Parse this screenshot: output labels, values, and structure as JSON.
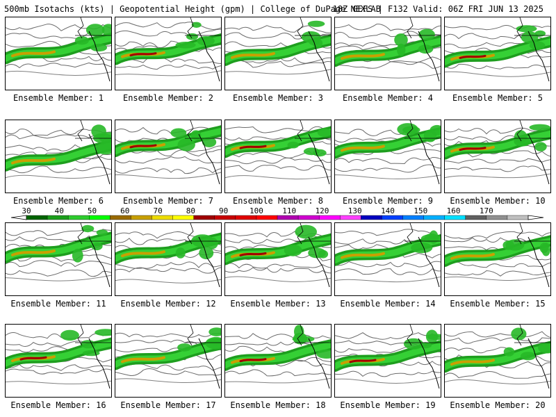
{
  "header": {
    "left": "500mb Isotachs (kts) | Geopotential Height (gpm) | College of DuPage NEXLAB",
    "right": "18Z GEFS | F132 Valid: 06Z FRI JUN 13 2025"
  },
  "colorbar": {
    "labels": [
      "30",
      "40",
      "50",
      "60",
      "70",
      "80",
      "90",
      "100",
      "110",
      "120",
      "130",
      "140",
      "150",
      "160",
      "170"
    ],
    "colors": [
      "#006400",
      "#1b9e1b",
      "#2ecc2e",
      "#00ff00",
      "#9a6b00",
      "#c8a000",
      "#eedd00",
      "#ffff00",
      "#a00000",
      "#c80000",
      "#e00000",
      "#ff0000",
      "#b000b0",
      "#d000d0",
      "#ff00ff",
      "#ff40ff",
      "#0000c0",
      "#0040ff",
      "#0080ff",
      "#00b0ff",
      "#00e0ff",
      "#606060",
      "#909090",
      "#c0c0c0"
    ]
  },
  "members": [
    {
      "label": "Ensemble Member: 1"
    },
    {
      "label": "Ensemble Member: 2"
    },
    {
      "label": "Ensemble Member: 3"
    },
    {
      "label": "Ensemble Member: 4"
    },
    {
      "label": "Ensemble Member: 5"
    },
    {
      "label": "Ensemble Member: 6"
    },
    {
      "label": "Ensemble Member: 7"
    },
    {
      "label": "Ensemble Member: 8"
    },
    {
      "label": "Ensemble Member: 9"
    },
    {
      "label": "Ensemble Member: 10"
    },
    {
      "label": "Ensemble Member: 11"
    },
    {
      "label": "Ensemble Member: 12"
    },
    {
      "label": "Ensemble Member: 13"
    },
    {
      "label": "Ensemble Member: 14"
    },
    {
      "label": "Ensemble Member: 15"
    },
    {
      "label": "Ensemble Member: 16"
    },
    {
      "label": "Ensemble Member: 17"
    },
    {
      "label": "Ensemble Member: 18"
    },
    {
      "label": "Ensemble Member: 19"
    },
    {
      "label": "Ensemble Member: 20"
    }
  ]
}
